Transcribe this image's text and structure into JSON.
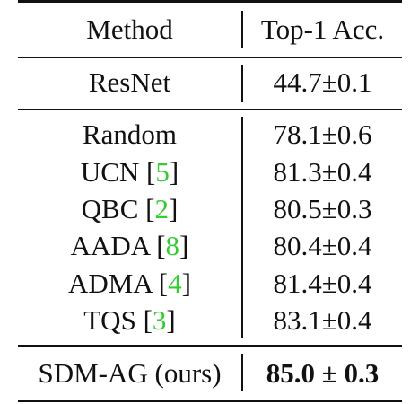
{
  "table": {
    "header": {
      "method": "Method",
      "accuracy": "Top-1 Acc."
    },
    "baseline": {
      "method": "ResNet",
      "accuracy": "44.7±0.1"
    },
    "rows": [
      {
        "method": "Random",
        "ref": "",
        "accuracy": "78.1±0.6"
      },
      {
        "method": "UCN",
        "ref": "5",
        "accuracy": "81.3±0.4"
      },
      {
        "method": "QBC",
        "ref": "2",
        "accuracy": "80.5±0.3"
      },
      {
        "method": "AADA",
        "ref": "8",
        "accuracy": "80.4±0.4"
      },
      {
        "method": "ADMA",
        "ref": "4",
        "accuracy": "81.4±0.4"
      },
      {
        "method": "TQS",
        "ref": "3",
        "accuracy": "83.1±0.4"
      }
    ],
    "ours": {
      "method": "SDM-AG (ours)",
      "accuracy": "85.0 ± 0.3"
    },
    "colors": {
      "text": "#111111",
      "citation": "#33cc33"
    }
  }
}
